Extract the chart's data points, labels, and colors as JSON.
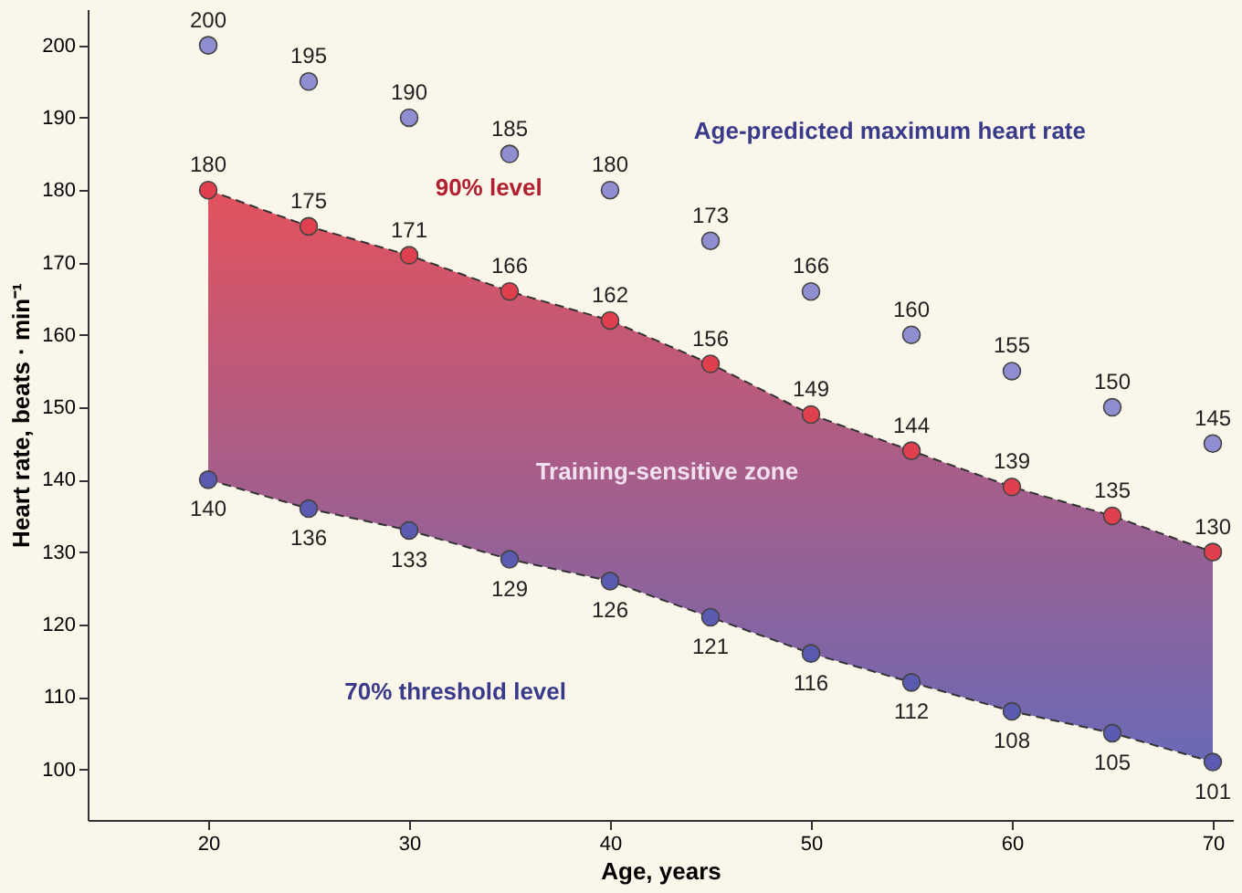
{
  "chart_data": {
    "type": "line",
    "xlabel": "Age, years",
    "ylabel": "Heart rate, beats · min⁻¹",
    "x": [
      20,
      25,
      30,
      35,
      40,
      45,
      50,
      55,
      60,
      65,
      70
    ],
    "series": [
      {
        "type": "scatter",
        "color": "#8e8ed0",
        "values": [
          200,
          195,
          190,
          185,
          180,
          173,
          166,
          160,
          155,
          150,
          145
        ]
      },
      {
        "type": "area",
        "color": "#e0404e",
        "line_style": "dashed",
        "values": [
          180,
          175,
          171,
          166,
          162,
          156,
          149,
          144,
          139,
          135,
          130
        ]
      },
      {
        "color": "#5a5ab0",
        "line_style": "dashed",
        "values": [
          140,
          136,
          133,
          129,
          126,
          121,
          116,
          112,
          108,
          105,
          101
        ]
      }
    ],
    "xlim": [
      14,
      71
    ],
    "xticks": [
      20,
      30,
      40,
      50,
      60,
      70
    ],
    "ylim": [
      93,
      205
    ],
    "yticks": [
      100,
      110,
      120,
      130,
      140,
      150,
      160,
      170,
      180,
      190,
      200
    ],
    "marker": "circle",
    "data_labels": true,
    "grid": false,
    "annotations": [
      "Age-predicted maximum heart rate",
      "90% level",
      "Training-sensitive zone",
      "70% threshold level"
    ]
  }
}
